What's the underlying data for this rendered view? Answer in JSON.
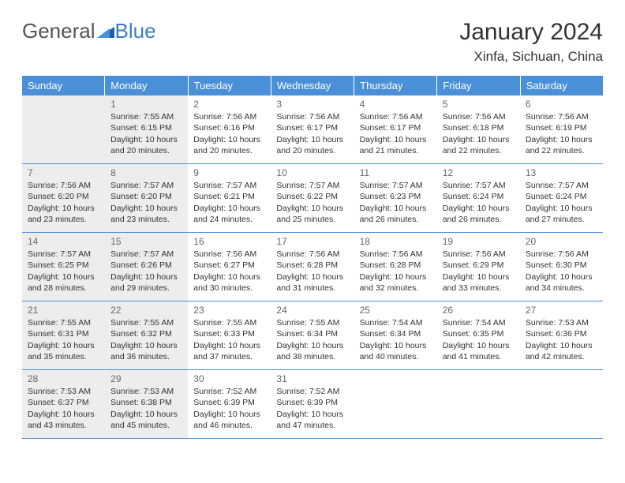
{
  "logo": {
    "part1": "General",
    "part2": "Blue"
  },
  "title": "January 2024",
  "location": "Xinfa, Sichuan, China",
  "day_headers": [
    "Sunday",
    "Monday",
    "Tuesday",
    "Wednesday",
    "Thursday",
    "Friday",
    "Saturday"
  ],
  "colors": {
    "header_bg": "#4a90d9",
    "header_text": "#ffffff",
    "shade_bg": "#ededed",
    "border": "#4a90d9",
    "logo_blue": "#3b7fc4",
    "text": "#333333",
    "date_text": "#666666"
  },
  "weeks": [
    [
      {
        "date": "",
        "shade": true,
        "lines": []
      },
      {
        "date": "1",
        "shade": true,
        "lines": [
          "Sunrise: 7:55 AM",
          "Sunset: 6:15 PM",
          "Daylight: 10 hours and 20 minutes."
        ]
      },
      {
        "date": "2",
        "shade": false,
        "lines": [
          "Sunrise: 7:56 AM",
          "Sunset: 6:16 PM",
          "Daylight: 10 hours and 20 minutes."
        ]
      },
      {
        "date": "3",
        "shade": false,
        "lines": [
          "Sunrise: 7:56 AM",
          "Sunset: 6:17 PM",
          "Daylight: 10 hours and 20 minutes."
        ]
      },
      {
        "date": "4",
        "shade": false,
        "lines": [
          "Sunrise: 7:56 AM",
          "Sunset: 6:17 PM",
          "Daylight: 10 hours and 21 minutes."
        ]
      },
      {
        "date": "5",
        "shade": false,
        "lines": [
          "Sunrise: 7:56 AM",
          "Sunset: 6:18 PM",
          "Daylight: 10 hours and 22 minutes."
        ]
      },
      {
        "date": "6",
        "shade": false,
        "lines": [
          "Sunrise: 7:56 AM",
          "Sunset: 6:19 PM",
          "Daylight: 10 hours and 22 minutes."
        ]
      }
    ],
    [
      {
        "date": "7",
        "shade": true,
        "lines": [
          "Sunrise: 7:56 AM",
          "Sunset: 6:20 PM",
          "Daylight: 10 hours and 23 minutes."
        ]
      },
      {
        "date": "8",
        "shade": true,
        "lines": [
          "Sunrise: 7:57 AM",
          "Sunset: 6:20 PM",
          "Daylight: 10 hours and 23 minutes."
        ]
      },
      {
        "date": "9",
        "shade": false,
        "lines": [
          "Sunrise: 7:57 AM",
          "Sunset: 6:21 PM",
          "Daylight: 10 hours and 24 minutes."
        ]
      },
      {
        "date": "10",
        "shade": false,
        "lines": [
          "Sunrise: 7:57 AM",
          "Sunset: 6:22 PM",
          "Daylight: 10 hours and 25 minutes."
        ]
      },
      {
        "date": "11",
        "shade": false,
        "lines": [
          "Sunrise: 7:57 AM",
          "Sunset: 6:23 PM",
          "Daylight: 10 hours and 26 minutes."
        ]
      },
      {
        "date": "12",
        "shade": false,
        "lines": [
          "Sunrise: 7:57 AM",
          "Sunset: 6:24 PM",
          "Daylight: 10 hours and 26 minutes."
        ]
      },
      {
        "date": "13",
        "shade": false,
        "lines": [
          "Sunrise: 7:57 AM",
          "Sunset: 6:24 PM",
          "Daylight: 10 hours and 27 minutes."
        ]
      }
    ],
    [
      {
        "date": "14",
        "shade": true,
        "lines": [
          "Sunrise: 7:57 AM",
          "Sunset: 6:25 PM",
          "Daylight: 10 hours and 28 minutes."
        ]
      },
      {
        "date": "15",
        "shade": true,
        "lines": [
          "Sunrise: 7:57 AM",
          "Sunset: 6:26 PM",
          "Daylight: 10 hours and 29 minutes."
        ]
      },
      {
        "date": "16",
        "shade": false,
        "lines": [
          "Sunrise: 7:56 AM",
          "Sunset: 6:27 PM",
          "Daylight: 10 hours and 30 minutes."
        ]
      },
      {
        "date": "17",
        "shade": false,
        "lines": [
          "Sunrise: 7:56 AM",
          "Sunset: 6:28 PM",
          "Daylight: 10 hours and 31 minutes."
        ]
      },
      {
        "date": "18",
        "shade": false,
        "lines": [
          "Sunrise: 7:56 AM",
          "Sunset: 6:28 PM",
          "Daylight: 10 hours and 32 minutes."
        ]
      },
      {
        "date": "19",
        "shade": false,
        "lines": [
          "Sunrise: 7:56 AM",
          "Sunset: 6:29 PM",
          "Daylight: 10 hours and 33 minutes."
        ]
      },
      {
        "date": "20",
        "shade": false,
        "lines": [
          "Sunrise: 7:56 AM",
          "Sunset: 6:30 PM",
          "Daylight: 10 hours and 34 minutes."
        ]
      }
    ],
    [
      {
        "date": "21",
        "shade": true,
        "lines": [
          "Sunrise: 7:55 AM",
          "Sunset: 6:31 PM",
          "Daylight: 10 hours and 35 minutes."
        ]
      },
      {
        "date": "22",
        "shade": true,
        "lines": [
          "Sunrise: 7:55 AM",
          "Sunset: 6:32 PM",
          "Daylight: 10 hours and 36 minutes."
        ]
      },
      {
        "date": "23",
        "shade": false,
        "lines": [
          "Sunrise: 7:55 AM",
          "Sunset: 6:33 PM",
          "Daylight: 10 hours and 37 minutes."
        ]
      },
      {
        "date": "24",
        "shade": false,
        "lines": [
          "Sunrise: 7:55 AM",
          "Sunset: 6:34 PM",
          "Daylight: 10 hours and 38 minutes."
        ]
      },
      {
        "date": "25",
        "shade": false,
        "lines": [
          "Sunrise: 7:54 AM",
          "Sunset: 6:34 PM",
          "Daylight: 10 hours and 40 minutes."
        ]
      },
      {
        "date": "26",
        "shade": false,
        "lines": [
          "Sunrise: 7:54 AM",
          "Sunset: 6:35 PM",
          "Daylight: 10 hours and 41 minutes."
        ]
      },
      {
        "date": "27",
        "shade": false,
        "lines": [
          "Sunrise: 7:53 AM",
          "Sunset: 6:36 PM",
          "Daylight: 10 hours and 42 minutes."
        ]
      }
    ],
    [
      {
        "date": "28",
        "shade": true,
        "lines": [
          "Sunrise: 7:53 AM",
          "Sunset: 6:37 PM",
          "Daylight: 10 hours and 43 minutes."
        ]
      },
      {
        "date": "29",
        "shade": true,
        "lines": [
          "Sunrise: 7:53 AM",
          "Sunset: 6:38 PM",
          "Daylight: 10 hours and 45 minutes."
        ]
      },
      {
        "date": "30",
        "shade": false,
        "lines": [
          "Sunrise: 7:52 AM",
          "Sunset: 6:39 PM",
          "Daylight: 10 hours and 46 minutes."
        ]
      },
      {
        "date": "31",
        "shade": false,
        "lines": [
          "Sunrise: 7:52 AM",
          "Sunset: 6:39 PM",
          "Daylight: 10 hours and 47 minutes."
        ]
      },
      {
        "date": "",
        "shade": false,
        "lines": []
      },
      {
        "date": "",
        "shade": false,
        "lines": []
      },
      {
        "date": "",
        "shade": false,
        "lines": []
      }
    ]
  ]
}
